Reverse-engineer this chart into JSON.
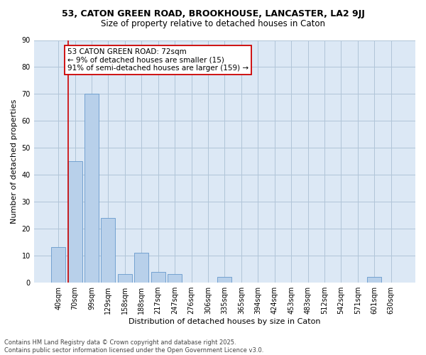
{
  "title_line1": "53, CATON GREEN ROAD, BROOKHOUSE, LANCASTER, LA2 9JJ",
  "title_line2": "Size of property relative to detached houses in Caton",
  "xlabel": "Distribution of detached houses by size in Caton",
  "ylabel": "Number of detached properties",
  "bar_labels": [
    "40sqm",
    "70sqm",
    "99sqm",
    "129sqm",
    "158sqm",
    "188sqm",
    "217sqm",
    "247sqm",
    "276sqm",
    "306sqm",
    "335sqm",
    "365sqm",
    "394sqm",
    "424sqm",
    "453sqm",
    "483sqm",
    "512sqm",
    "542sqm",
    "571sqm",
    "601sqm",
    "630sqm"
  ],
  "bar_values": [
    13,
    45,
    70,
    24,
    3,
    11,
    4,
    3,
    0,
    0,
    2,
    0,
    0,
    0,
    0,
    0,
    0,
    0,
    0,
    2,
    0
  ],
  "bar_color": "#b8d0ea",
  "bar_edge_color": "#6699cc",
  "vline_index": 1,
  "vline_color": "#cc0000",
  "annotation_text": "53 CATON GREEN ROAD: 72sqm\n← 9% of detached houses are smaller (15)\n91% of semi-detached houses are larger (159) →",
  "annotation_box_color": "#cc0000",
  "ylim": [
    0,
    90
  ],
  "yticks": [
    0,
    10,
    20,
    30,
    40,
    50,
    60,
    70,
    80,
    90
  ],
  "fig_background": "#ffffff",
  "plot_background": "#dce8f5",
  "footer_line1": "Contains HM Land Registry data © Crown copyright and database right 2025.",
  "footer_line2": "Contains public sector information licensed under the Open Government Licence v3.0.",
  "grid_color": "#b0c4d8",
  "title1_fontsize": 9,
  "title2_fontsize": 8.5,
  "tick_fontsize": 7,
  "ylabel_fontsize": 8,
  "xlabel_fontsize": 8,
  "annot_fontsize": 7.5,
  "footer_fontsize": 6
}
